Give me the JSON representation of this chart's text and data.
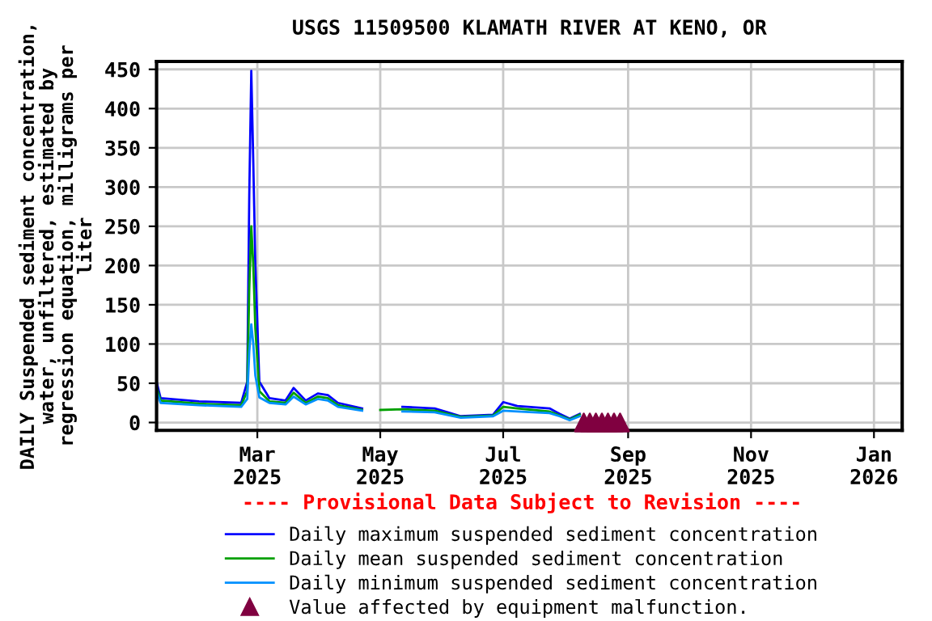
{
  "chart_data": {
    "type": "line",
    "title": "USGS 11509500 KLAMATH RIVER AT KENO, OR",
    "ylabel": "DAILY Suspended sediment concentration,\nwater, unfiltered, estimated by\nregression equation, milligrams per\nliter",
    "xlim": [
      "2025-01-10",
      "2026-01-15"
    ],
    "xticks": [
      {
        "value": "2025-03-01",
        "label": "Mar\n2025"
      },
      {
        "value": "2025-05-01",
        "label": "May\n2025"
      },
      {
        "value": "2025-07-01",
        "label": "Jul\n2025"
      },
      {
        "value": "2025-09-01",
        "label": "Sep\n2025"
      },
      {
        "value": "2025-11-01",
        "label": "Nov\n2025"
      },
      {
        "value": "2026-01-01",
        "label": "Jan\n2026"
      }
    ],
    "ylim": [
      -10,
      460
    ],
    "yticks": [
      0,
      50,
      100,
      150,
      200,
      250,
      300,
      350,
      400,
      450
    ],
    "grid": true,
    "legend": "bottom",
    "marker": "none",
    "line_style": "solid",
    "annotations": [
      "---- Provisional Data Subject to Revision ----"
    ],
    "series": [
      {
        "name": "Daily maximum suspended sediment concentration",
        "color": "#0000ff",
        "x": [
          "2025-01-10",
          "2025-01-12",
          "2025-01-31",
          "2025-02-21",
          "2025-02-24",
          "2025-02-25",
          "2025-02-26",
          "2025-02-27",
          "2025-02-28",
          "2025-03-02",
          "2025-03-07",
          "2025-03-15",
          "2025-03-19",
          "2025-03-25",
          "2025-03-31",
          "2025-04-05",
          "2025-04-10",
          "2025-04-22",
          "2025-04-26",
          "2025-05-12",
          "2025-05-28",
          "2025-06-10",
          "2025-06-26",
          "2025-07-01",
          "2025-07-08",
          "2025-07-24",
          "2025-07-29",
          "2025-08-03",
          "2025-08-08"
        ],
        "values": [
          52,
          31,
          27,
          25,
          52,
          290,
          448,
          331,
          202,
          52,
          31,
          28,
          44,
          28,
          37,
          35,
          25,
          18,
          null,
          20,
          18,
          8,
          10,
          26,
          21,
          18,
          11,
          5,
          11
        ]
      },
      {
        "name": "Daily mean suspended sediment concentration",
        "color": "#00a000",
        "x": [
          "2025-01-10",
          "2025-01-12",
          "2025-01-31",
          "2025-02-21",
          "2025-02-24",
          "2025-02-25",
          "2025-02-26",
          "2025-02-27",
          "2025-02-28",
          "2025-03-02",
          "2025-03-07",
          "2025-03-15",
          "2025-03-19",
          "2025-03-25",
          "2025-03-31",
          "2025-04-05",
          "2025-04-10",
          "2025-04-22",
          "2025-04-26",
          "2025-05-01",
          "2025-05-12",
          "2025-05-28",
          "2025-06-10",
          "2025-06-26",
          "2025-07-01",
          "2025-07-08",
          "2025-07-24",
          "2025-07-29",
          "2025-08-03",
          "2025-08-08"
        ],
        "values": [
          45,
          28,
          24,
          22,
          40,
          170,
          250,
          200,
          120,
          40,
          27,
          25,
          38,
          25,
          33,
          31,
          22,
          16,
          null,
          16,
          17,
          15,
          7,
          9,
          20,
          18,
          14,
          9,
          4,
          10
        ]
      },
      {
        "name": "Daily minimum suspended sediment concentration",
        "color": "#0090ff",
        "x": [
          "2025-01-10",
          "2025-01-12",
          "2025-01-31",
          "2025-02-21",
          "2025-02-24",
          "2025-02-25",
          "2025-02-26",
          "2025-02-27",
          "2025-02-28",
          "2025-03-02",
          "2025-03-07",
          "2025-03-15",
          "2025-03-19",
          "2025-03-25",
          "2025-03-31",
          "2025-04-05",
          "2025-04-10",
          "2025-04-22",
          "2025-04-26",
          "2025-05-12",
          "2025-05-28",
          "2025-06-10",
          "2025-06-26",
          "2025-07-01",
          "2025-07-08",
          "2025-07-24",
          "2025-07-29",
          "2025-08-03",
          "2025-08-08"
        ],
        "values": [
          40,
          25,
          22,
          20,
          30,
          90,
          125,
          100,
          60,
          32,
          25,
          23,
          33,
          23,
          30,
          28,
          20,
          15,
          null,
          14,
          13,
          6,
          8,
          15,
          14,
          12,
          8,
          3,
          8
        ]
      },
      {
        "name": "Value affected by equipment malfunction.",
        "type": "scatter",
        "marker": "triangle",
        "color": "#800040",
        "x": [
          "2025-08-10",
          "2025-08-13",
          "2025-08-16",
          "2025-08-19",
          "2025-08-22",
          "2025-08-25",
          "2025-08-28"
        ],
        "values": [
          0,
          0,
          0,
          0,
          0,
          0,
          0
        ]
      }
    ]
  }
}
